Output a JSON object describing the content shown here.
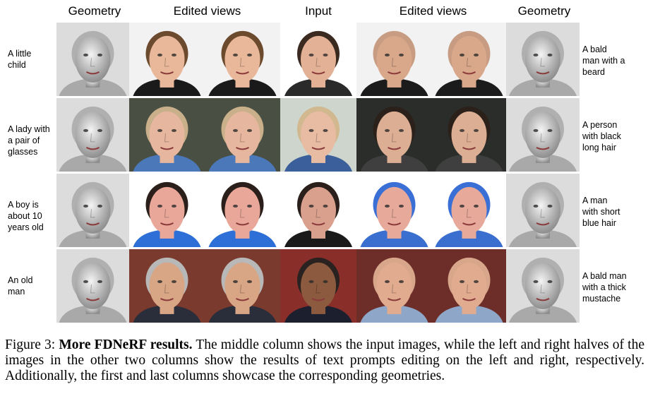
{
  "headers": {
    "geometry_left": "Geometry",
    "edited_left": "Edited views",
    "input": "Input",
    "edited_right": "Edited views",
    "geometry_right": "Geometry"
  },
  "rows": [
    {
      "left_prompt": "A little\nchild",
      "right_prompt": "A bald\nman with a\nbeard",
      "bg_left": "#f2f2f2",
      "bg_right": "#f2f2f2",
      "bg_input": "#ffffff",
      "skin_left": "#e9b89a",
      "skin_input": "#e3b196",
      "skin_right": "#d9a88a",
      "hair_left": "#6b4a2e",
      "hair_input": "#3a2a20",
      "hair_right": "#c79c82",
      "shirt_left": "#1a1a1a",
      "shirt_input": "#2a2a2a",
      "shirt_right": "#1b1b1b"
    },
    {
      "left_prompt": "A lady with\na pair of\nglasses",
      "right_prompt": "A person\nwith black\nlong hair",
      "bg_left": "#4a4f44",
      "bg_right": "#2a2d29",
      "bg_input": "#cdd5cc",
      "skin_left": "#e6b79e",
      "skin_input": "#e8bca3",
      "skin_right": "#dcae93",
      "hair_left": "#c9b08a",
      "hair_input": "#d2b88f",
      "hair_right": "#2b201a",
      "shirt_left": "#4a78b8",
      "shirt_input": "#3a5f9a",
      "shirt_right": "#3f3f3f"
    },
    {
      "left_prompt": "A boy is\nabout 10\nyears old",
      "right_prompt": "A man\nwith short\nblue hair",
      "bg_left": "#ffffff",
      "bg_right": "#ffffff",
      "bg_input": "#ffffff",
      "skin_left": "#e9a79a",
      "skin_input": "#d9a08e",
      "skin_right": "#e6a99a",
      "hair_left": "#2a1f1a",
      "hair_input": "#2a1f1a",
      "hair_right": "#3a6fd6",
      "shirt_left": "#2d6fd6",
      "shirt_input": "#1a1a1a",
      "shirt_right": "#3a6fcf"
    },
    {
      "left_prompt": "An old\nman",
      "right_prompt": "A bald man\nwith a thick\nmustache",
      "bg_left": "#7a3a2e",
      "bg_right": "#6d2d28",
      "bg_input": "#8a2e2a",
      "skin_left": "#d8a585",
      "skin_input": "#8c5a3e",
      "skin_right": "#e0ab8e",
      "hair_left": "#b8b8b8",
      "hair_input": "#2a2220",
      "hair_right": "#d7a68b",
      "shirt_left": "#2a2d3a",
      "shirt_input": "#1c1f2e",
      "shirt_right": "#8ea6c8"
    }
  ],
  "caption": {
    "lead": "Figure 3: ",
    "bold": "More FDNeRF results.",
    "rest": " The middle column shows the input images, while the left and right halves of the images in the other two columns show the results of text prompts editing on the left and right, respectively. Additionally, the first and last columns showcase the corresponding geometries."
  }
}
